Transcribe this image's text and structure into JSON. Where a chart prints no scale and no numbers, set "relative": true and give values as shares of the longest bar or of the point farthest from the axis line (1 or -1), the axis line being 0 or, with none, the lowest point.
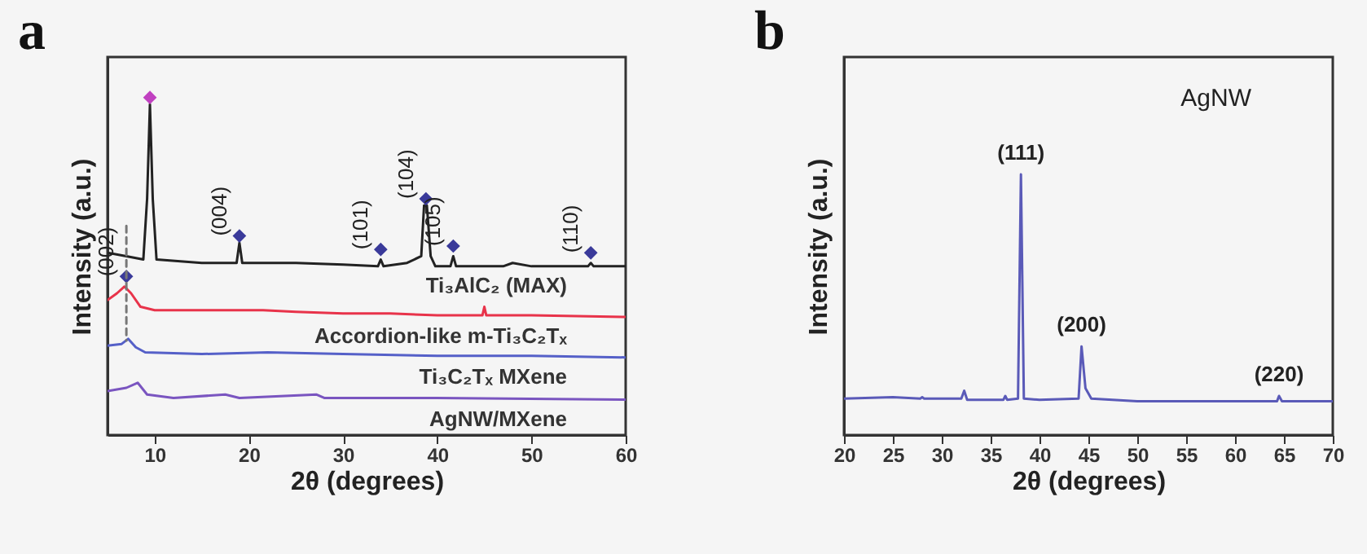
{
  "chart_data": [
    {
      "type": "line",
      "title": "a",
      "xlabel": "2θ (degrees)",
      "ylabel": "Intensity (a.u.)",
      "relative": true,
      "xlim": [
        5,
        60
      ],
      "xticks": [
        10,
        20,
        30,
        40,
        50,
        60
      ],
      "grid": false,
      "series": [
        {
          "name": "Ti₃AlC₂ (MAX)",
          "color": "#222222",
          "x": [
            5,
            7,
            8.8,
            9.2,
            9.5,
            9.8,
            10.2,
            15,
            18.7,
            19,
            19.3,
            25,
            30,
            33.7,
            34,
            34.3,
            36.8,
            38.3,
            38.6,
            38.9,
            39.3,
            39.8,
            41.4,
            41.7,
            42,
            47,
            48,
            50,
            56,
            56.3,
            56.6,
            60
          ],
          "values": [
            0.54,
            0.53,
            0.52,
            0.7,
            0.98,
            0.7,
            0.52,
            0.51,
            0.51,
            0.57,
            0.51,
            0.51,
            0.505,
            0.5,
            0.52,
            0.5,
            0.51,
            0.53,
            0.68,
            0.68,
            0.53,
            0.5,
            0.5,
            0.53,
            0.5,
            0.5,
            0.51,
            0.5,
            0.5,
            0.51,
            0.5,
            0.5
          ]
        },
        {
          "name": "Accordion-like m-Ti₃C₂Tₓ",
          "color": "#e8334a",
          "x": [
            5,
            6,
            6.8,
            7.5,
            8.5,
            10,
            15,
            21.5,
            25,
            30,
            35,
            40,
            44.8,
            45,
            45.2,
            50,
            60
          ],
          "values": [
            0.4,
            0.42,
            0.44,
            0.42,
            0.38,
            0.37,
            0.37,
            0.37,
            0.365,
            0.36,
            0.36,
            0.355,
            0.355,
            0.38,
            0.355,
            0.355,
            0.35
          ]
        },
        {
          "name": "Ti₃C₂Tₓ MXene",
          "color": "#5560c8",
          "x": [
            5,
            6.5,
            7.2,
            8,
            9,
            15,
            22,
            30,
            40,
            50,
            60
          ],
          "values": [
            0.265,
            0.27,
            0.285,
            0.26,
            0.245,
            0.24,
            0.245,
            0.24,
            0.235,
            0.235,
            0.23
          ]
        },
        {
          "name": "AgNW/MXene",
          "color": "#7a55c0",
          "x": [
            5,
            7,
            8.2,
            9.2,
            12,
            17.5,
            19,
            27.2,
            28,
            40,
            60
          ],
          "values": [
            0.13,
            0.14,
            0.155,
            0.12,
            0.11,
            0.12,
            0.11,
            0.12,
            0.11,
            0.11,
            0.105
          ]
        },
        {
          "type": "scatter",
          "marker": "diamond",
          "x": [
            7,
            9.5,
            19,
            34,
            38.8,
            41.7,
            56.3
          ],
          "values": [
            0.47,
            1.0,
            0.59,
            0.55,
            0.7,
            0.56,
            0.54
          ],
          "colors": [
            "#3a3a9a",
            "#c040c0",
            "#3a3a9a",
            "#3a3a9a",
            "#3a3a9a",
            "#3a3a9a",
            "#3a3a9a"
          ]
        },
        {
          "color": "#777777",
          "line_style": "dashed",
          "x": [
            7,
            7
          ],
          "values": [
            0.62,
            0.28
          ]
        }
      ],
      "annotations": [
        {
          "text": "(002)",
          "x": 7,
          "y": 0.47
        },
        {
          "text": "(004)",
          "x": 19,
          "y": 0.59
        },
        {
          "text": "(101)",
          "x": 34,
          "y": 0.55
        },
        {
          "text": "(104)",
          "x": 38.8,
          "y": 0.7
        },
        {
          "text": "(105)",
          "x": 41.7,
          "y": 0.56
        },
        {
          "text": "(110)",
          "x": 56.3,
          "y": 0.54
        }
      ]
    },
    {
      "type": "line",
      "title": "b",
      "xlabel": "2θ (degrees)",
      "ylabel": "Intensity (a.u.)",
      "relative": true,
      "xlim": [
        20,
        70
      ],
      "xticks": [
        20,
        25,
        30,
        35,
        40,
        45,
        50,
        55,
        60,
        65,
        70
      ],
      "grid": false,
      "series": [
        {
          "name": "AgNW",
          "color": "#5a5ab8",
          "x": [
            20,
            25,
            27.8,
            28,
            28.2,
            32,
            32.3,
            32.6,
            36.3,
            36.5,
            36.7,
            37.8,
            38.1,
            38.4,
            40,
            44,
            44.3,
            44.7,
            45.3,
            50,
            60,
            64.3,
            64.5,
            64.8,
            70
          ],
          "values": [
            0.14,
            0.145,
            0.14,
            0.145,
            0.14,
            0.14,
            0.17,
            0.135,
            0.135,
            0.15,
            0.135,
            0.14,
            1.0,
            0.14,
            0.135,
            0.14,
            0.34,
            0.18,
            0.14,
            0.13,
            0.13,
            0.13,
            0.15,
            0.13,
            0.13
          ]
        }
      ],
      "annotations": [
        {
          "text": "(111)",
          "x": 38.1,
          "y": 1.0
        },
        {
          "text": "(200)",
          "x": 44.3,
          "y": 0.34
        },
        {
          "text": "(220)",
          "x": 64.5,
          "y": 0.15
        }
      ]
    }
  ]
}
